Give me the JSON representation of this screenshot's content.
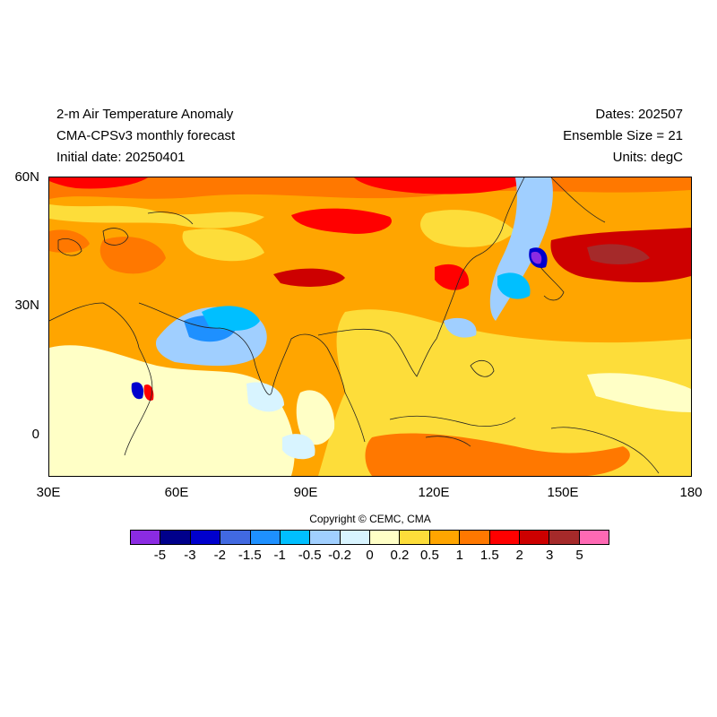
{
  "header": {
    "title": "2-m Air Temperature Anomaly",
    "model": "CMA-CPSv3 monthly forecast",
    "initial_date": "Initial date: 20250401",
    "dates": "Dates: 202507",
    "ensemble": "Ensemble Size = 21",
    "units": "Units: degC"
  },
  "axes": {
    "lat_labels": [
      "60N",
      "30N",
      "0"
    ],
    "lon_labels": [
      "30E",
      "60E",
      "90E",
      "120E",
      "150E",
      "180"
    ]
  },
  "copyright": "Copyright © CEMC, CMA",
  "colorbar": {
    "colors": [
      "#8b2be2",
      "#00008b",
      "#0000cd",
      "#4169e1",
      "#1e90ff",
      "#00bfff",
      "#a0cfff",
      "#d8f4ff",
      "#ffffc6",
      "#fddd3a",
      "#ffa500",
      "#ff7800",
      "#ff0000",
      "#cd0000",
      "#a52a2a",
      "#ff69b4"
    ],
    "labels": [
      "-5",
      "-3",
      "-2",
      "-1.5",
      "-1",
      "-0.5",
      "-0.2",
      "0",
      "0.2",
      "0.5",
      "1",
      "1.5",
      "2",
      "3",
      "5"
    ]
  },
  "map": {
    "extent": {
      "lon": [
        30,
        180
      ],
      "lat": [
        -10,
        60
      ]
    },
    "background_color": "#ffa500"
  }
}
